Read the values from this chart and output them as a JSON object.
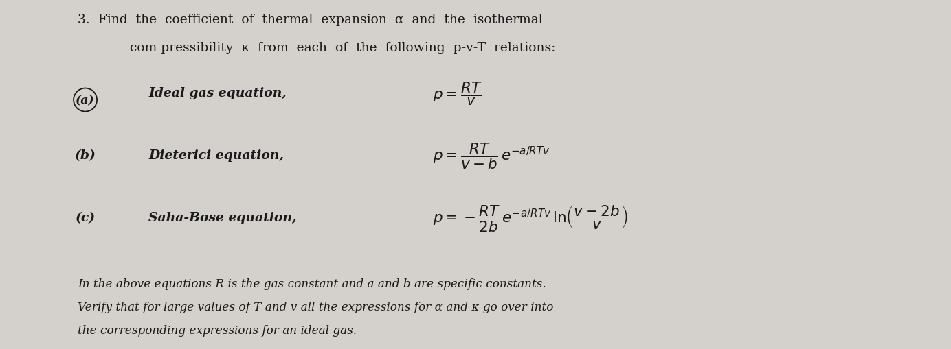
{
  "background_color": "#d4d0cc",
  "text_color": "#1a1a1a",
  "fig_width": 13.84,
  "fig_height": 5.1,
  "title_line1": "3.  Find  the  coefficient  of  thermal  expansion  α  and  the  isothermal",
  "title_line2": "com pressibility  κ  from  each  of  the  following  p-v-T  relations:",
  "eq_a_label": "(a)",
  "eq_a_text": "Ideal gas equation,",
  "eq_b_label": "(b)",
  "eq_b_text": "Dieterici equation,",
  "eq_c_label": "(c)",
  "eq_c_text": "Saha-Bose equation,",
  "footer_line1": "In the above equations R is the gas constant and a and b are specific constants.",
  "footer_line2": "Verify that for large values of T and v all the expressions for α and κ go over into",
  "footer_line3": "the corresponding expressions for an ideal gas."
}
